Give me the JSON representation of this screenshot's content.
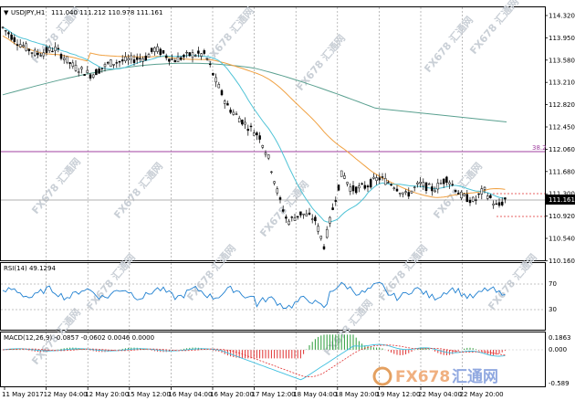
{
  "header": {
    "symbol_label": "USDJPY,H1",
    "ohlc": "111.040 111.212 110.978 111.161"
  },
  "price_axis": {
    "ticks": [
      "114.320",
      "113.950",
      "113.580",
      "113.210",
      "112.820",
      "112.450",
      "112.060",
      "111.680",
      "111.300",
      "110.920",
      "110.540",
      "110.160"
    ],
    "current_price": "111.161",
    "fib_label": "38.2"
  },
  "rsi": {
    "label": "RSI(14) 49.1294",
    "ticks": [
      "70",
      "30"
    ]
  },
  "macd": {
    "label": "MACD(12,26,9) -0.0857 -0.0602 0.0046 0.0000",
    "ticks": [
      "0.1863",
      "0.000",
      "-0.589"
    ]
  },
  "time_axis": {
    "labels": [
      "11 May 2017",
      "12 May 04:00",
      "12 May 20:00",
      "15 May 12:00",
      "16 May 04:00",
      "16 May 20:00",
      "17 May 12:00",
      "18 May 04:00",
      "18 May 20:00",
      "19 May 12:00",
      "22 May 04:00",
      "22 May 20:00"
    ]
  },
  "watermark": {
    "text": "FX678 汇通网",
    "logo_text": "FX678",
    "logo_cn": "汇通网"
  },
  "colors": {
    "bull": "#000000",
    "bear": "#000000",
    "ma_fast": "#4fc3d6",
    "ma_mid": "#f0a040",
    "ma_slow": "#5aa090",
    "fib": "#a040a0",
    "rsi_line": "#1e7fd0",
    "macd_pos": "#2a9d3a",
    "macd_neg": "#e03030",
    "signal": "#e03030",
    "macd_line": "#40c0e0"
  },
  "chart_data": {
    "type": "candlestick",
    "title": "USDJPY,H1",
    "ylim": [
      110.1,
      114.4
    ],
    "current_price": 111.161,
    "fib_level": 112.06,
    "fib_label": "38.2"
  }
}
